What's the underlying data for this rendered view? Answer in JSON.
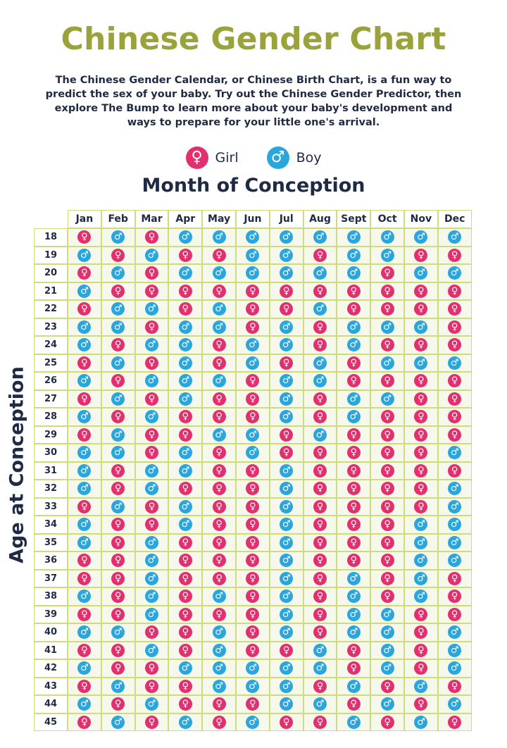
{
  "title": "Chinese Gender Chart",
  "intro": "The Chinese Gender Calendar, or Chinese Birth Chart, is a fun way to predict the sex of your baby. Try out the Chinese Gender Predictor, then explore The Bump to learn more about your baby's development and ways to prepare for your little one's arrival.",
  "legend": {
    "girl_label": "Girl",
    "boy_label": "Boy",
    "girl_icon": "female-symbol-icon",
    "boy_icon": "male-symbol-icon"
  },
  "colors": {
    "title": "#9aa33a",
    "girl": "#e2306f",
    "boy": "#2aa6dc",
    "grid": "#cfdc7a",
    "text": "#1f2a44"
  },
  "chart_data": {
    "type": "table",
    "xlabel": "Month of Conception",
    "ylabel": "Age at Conception",
    "months": [
      "Jan",
      "Feb",
      "Mar",
      "Apr",
      "May",
      "Jun",
      "Jul",
      "Aug",
      "Sept",
      "Oct",
      "Nov",
      "Dec"
    ],
    "ages": [
      "18",
      "19",
      "20",
      "21",
      "22",
      "23",
      "24",
      "25",
      "26",
      "27",
      "28",
      "29",
      "30",
      "31",
      "32",
      "33",
      "34",
      "35",
      "36",
      "37",
      "38",
      "39",
      "40",
      "41",
      "42",
      "43",
      "44",
      "45"
    ],
    "values": [
      [
        "G",
        "B",
        "G",
        "B",
        "B",
        "B",
        "B",
        "B",
        "B",
        "B",
        "B",
        "B"
      ],
      [
        "B",
        "G",
        "B",
        "G",
        "G",
        "B",
        "B",
        "G",
        "B",
        "B",
        "G",
        "G"
      ],
      [
        "G",
        "B",
        "G",
        "B",
        "B",
        "B",
        "B",
        "B",
        "B",
        "G",
        "B",
        "B"
      ],
      [
        "B",
        "G",
        "G",
        "G",
        "G",
        "G",
        "G",
        "G",
        "G",
        "G",
        "G",
        "G"
      ],
      [
        "G",
        "B",
        "B",
        "G",
        "B",
        "G",
        "G",
        "B",
        "G",
        "G",
        "G",
        "G"
      ],
      [
        "B",
        "B",
        "G",
        "B",
        "B",
        "G",
        "B",
        "G",
        "B",
        "B",
        "B",
        "G"
      ],
      [
        "B",
        "G",
        "B",
        "B",
        "G",
        "B",
        "B",
        "G",
        "B",
        "G",
        "G",
        "G"
      ],
      [
        "G",
        "B",
        "G",
        "B",
        "G",
        "B",
        "G",
        "B",
        "G",
        "B",
        "B",
        "B"
      ],
      [
        "B",
        "G",
        "B",
        "B",
        "B",
        "G",
        "B",
        "B",
        "G",
        "G",
        "G",
        "G"
      ],
      [
        "G",
        "B",
        "G",
        "B",
        "G",
        "G",
        "B",
        "G",
        "B",
        "B",
        "G",
        "G"
      ],
      [
        "B",
        "G",
        "B",
        "G",
        "G",
        "G",
        "B",
        "G",
        "B",
        "G",
        "G",
        "G"
      ],
      [
        "G",
        "B",
        "G",
        "G",
        "B",
        "B",
        "G",
        "B",
        "G",
        "G",
        "G",
        "G"
      ],
      [
        "B",
        "B",
        "G",
        "B",
        "G",
        "B",
        "G",
        "G",
        "G",
        "G",
        "G",
        "B"
      ],
      [
        "B",
        "G",
        "B",
        "B",
        "G",
        "G",
        "B",
        "G",
        "G",
        "G",
        "G",
        "G"
      ],
      [
        "B",
        "G",
        "B",
        "G",
        "G",
        "G",
        "B",
        "G",
        "G",
        "G",
        "G",
        "B"
      ],
      [
        "G",
        "B",
        "G",
        "B",
        "G",
        "G",
        "B",
        "G",
        "G",
        "G",
        "G",
        "B"
      ],
      [
        "B",
        "G",
        "G",
        "B",
        "G",
        "G",
        "B",
        "G",
        "G",
        "G",
        "B",
        "B"
      ],
      [
        "B",
        "G",
        "B",
        "G",
        "G",
        "G",
        "B",
        "G",
        "G",
        "G",
        "B",
        "B"
      ],
      [
        "G",
        "G",
        "B",
        "G",
        "G",
        "G",
        "B",
        "G",
        "G",
        "G",
        "B",
        "B"
      ],
      [
        "G",
        "G",
        "B",
        "G",
        "G",
        "G",
        "B",
        "G",
        "B",
        "G",
        "B",
        "G"
      ],
      [
        "B",
        "G",
        "B",
        "G",
        "B",
        "G",
        "B",
        "G",
        "B",
        "G",
        "B",
        "G"
      ],
      [
        "G",
        "G",
        "B",
        "G",
        "G",
        "G",
        "B",
        "G",
        "B",
        "B",
        "G",
        "G"
      ],
      [
        "B",
        "B",
        "G",
        "G",
        "B",
        "G",
        "B",
        "G",
        "B",
        "B",
        "G",
        "B"
      ],
      [
        "G",
        "G",
        "B",
        "G",
        "B",
        "G",
        "G",
        "B",
        "G",
        "B",
        "G",
        "B"
      ],
      [
        "B",
        "G",
        "G",
        "B",
        "B",
        "B",
        "B",
        "B",
        "G",
        "B",
        "G",
        "B"
      ],
      [
        "G",
        "B",
        "G",
        "G",
        "B",
        "B",
        "B",
        "G",
        "B",
        "G",
        "B",
        "G"
      ],
      [
        "B",
        "G",
        "B",
        "G",
        "G",
        "G",
        "B",
        "B",
        "G",
        "B",
        "G",
        "B"
      ],
      [
        "G",
        "B",
        "G",
        "B",
        "G",
        "B",
        "G",
        "G",
        "B",
        "G",
        "B",
        "G"
      ]
    ]
  }
}
